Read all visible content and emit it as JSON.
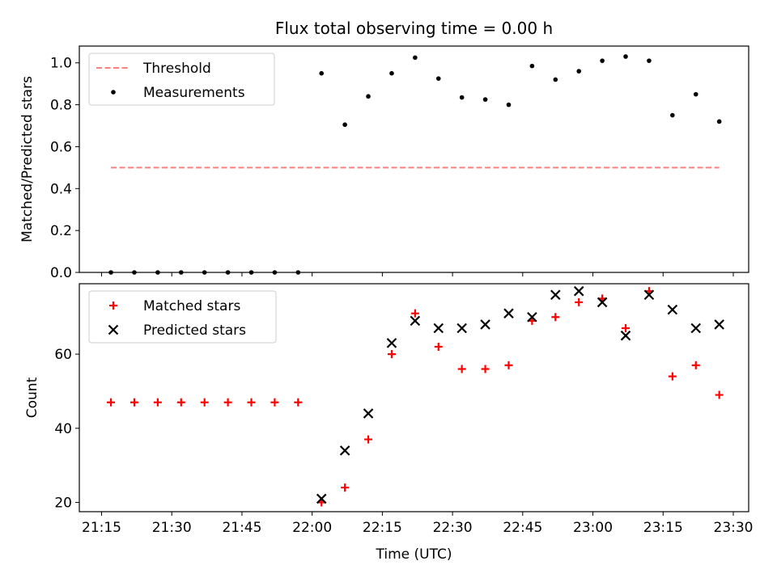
{
  "chart_data": [
    {
      "type": "scatter",
      "title": "Flux total observing time = 0.00 h",
      "ylabel": "Matched/Predicted stars",
      "xlabel": "",
      "ylim": [
        0,
        1.08
      ],
      "yticks": [
        "0.0",
        "0.2",
        "0.4",
        "0.6",
        "0.8",
        "1.0"
      ],
      "legend_position": "top-left",
      "series": [
        {
          "name": "Threshold",
          "style": "dashed-line",
          "color": "#ff7f7f",
          "x": [
            "21:17",
            "23:27"
          ],
          "y": [
            0.5,
            0.5
          ]
        },
        {
          "name": "Measurements",
          "style": "dot",
          "color": "#000000",
          "x": [
            "21:17",
            "21:22",
            "21:27",
            "21:32",
            "21:37",
            "21:42",
            "21:47",
            "21:52",
            "21:57",
            "22:02",
            "22:07",
            "22:12",
            "22:17",
            "22:22",
            "22:27",
            "22:32",
            "22:37",
            "22:42",
            "22:47",
            "22:52",
            "22:57",
            "23:02",
            "23:07",
            "23:12",
            "23:17",
            "23:22",
            "23:27"
          ],
          "y": [
            0,
            0,
            0,
            0,
            0,
            0,
            0,
            0,
            0,
            0.95,
            0.705,
            0.84,
            0.95,
            1.025,
            0.925,
            0.835,
            0.825,
            0.8,
            0.985,
            0.92,
            0.96,
            1.01,
            1.03,
            1.01,
            0.75,
            0.85,
            0.72
          ]
        }
      ]
    },
    {
      "type": "scatter",
      "title": "",
      "ylabel": "Count",
      "xlabel": "Time (UTC)",
      "ylim": [
        17.5,
        79
      ],
      "yticks": [
        "20",
        "40",
        "60"
      ],
      "xticks": [
        "21:15",
        "21:30",
        "21:45",
        "22:00",
        "22:15",
        "22:30",
        "22:45",
        "23:00",
        "23:15",
        "23:30"
      ],
      "legend_position": "top-left",
      "series": [
        {
          "name": "Matched stars",
          "style": "plus",
          "color": "#ff0000",
          "x": [
            "21:17",
            "21:22",
            "21:27",
            "21:32",
            "21:37",
            "21:42",
            "21:47",
            "21:52",
            "21:57",
            "22:02",
            "22:07",
            "22:12",
            "22:17",
            "22:22",
            "22:27",
            "22:32",
            "22:37",
            "22:42",
            "22:47",
            "22:52",
            "22:57",
            "23:02",
            "23:07",
            "23:12",
            "23:17",
            "23:22",
            "23:27"
          ],
          "y": [
            47,
            47,
            47,
            47,
            47,
            47,
            47,
            47,
            47,
            20,
            24,
            37,
            60,
            71,
            62,
            56,
            56,
            57,
            69,
            70,
            74,
            75,
            67,
            77,
            54,
            57,
            49
          ]
        },
        {
          "name": "Predicted stars",
          "style": "x",
          "color": "#000000",
          "x": [
            "22:02",
            "22:07",
            "22:12",
            "22:17",
            "22:22",
            "22:27",
            "22:32",
            "22:37",
            "22:42",
            "22:47",
            "22:52",
            "22:57",
            "23:02",
            "23:07",
            "23:12",
            "23:17",
            "23:22",
            "23:27"
          ],
          "y": [
            21,
            34,
            44,
            63,
            69,
            67,
            67,
            68,
            71,
            70,
            76,
            77,
            74,
            65,
            76,
            72,
            67,
            68
          ]
        }
      ]
    }
  ]
}
